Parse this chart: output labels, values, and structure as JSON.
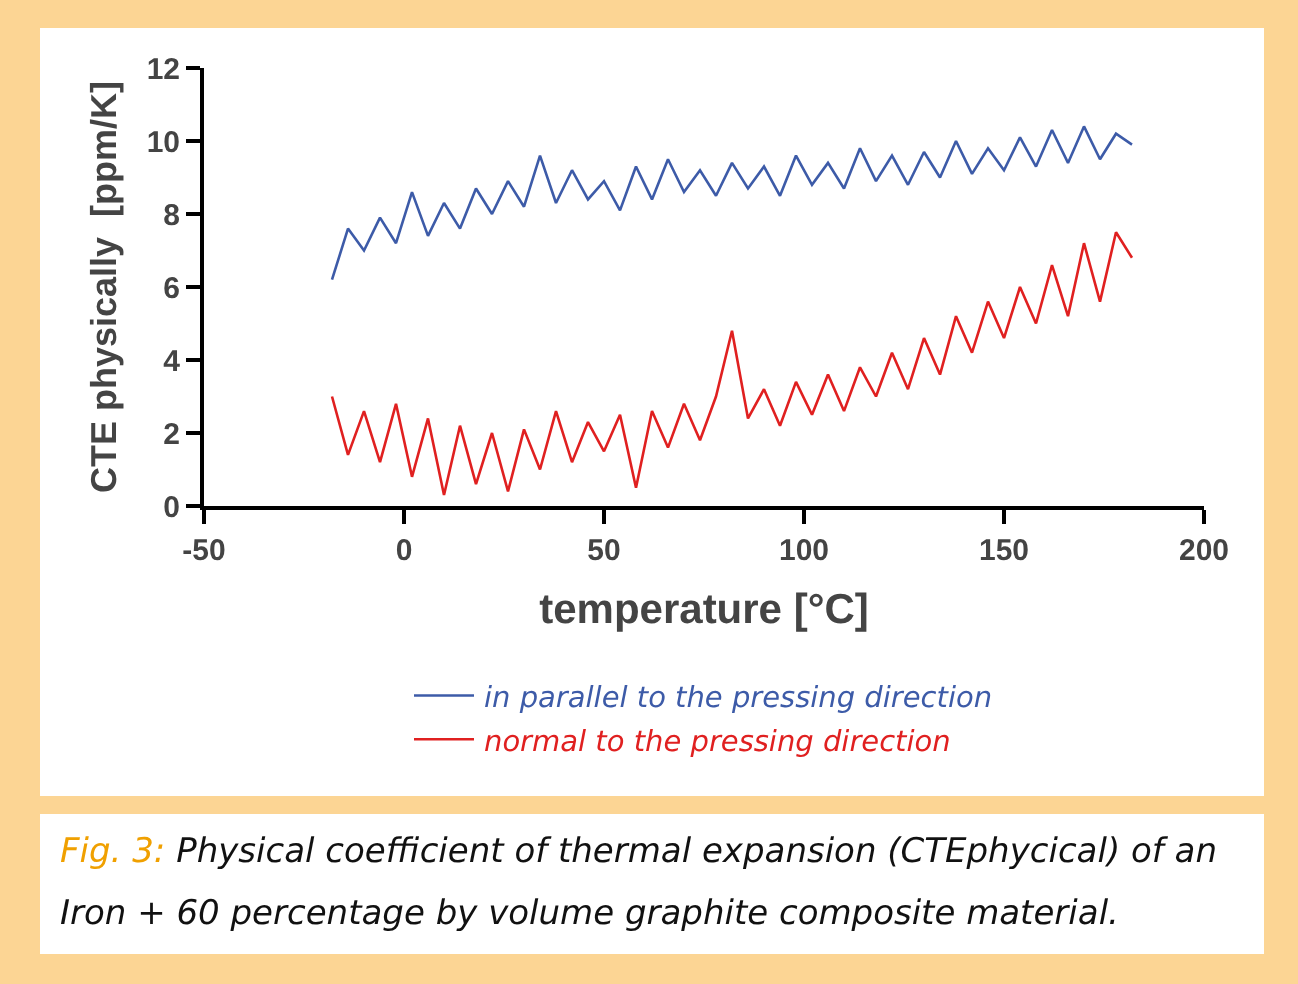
{
  "chart_data": {
    "type": "line",
    "xlabel": "temperature [°C]",
    "ylabel": "CTE physically  [ppm/K]",
    "annotations": [
      "Fig. 3:",
      "Physical coefficient of thermal expansion (CTEphycical) of an Iron + 60 percentage by volume graphite composite material."
    ],
    "x": [
      -18,
      -14,
      -10,
      -6,
      -2,
      2,
      6,
      10,
      14,
      18,
      22,
      26,
      30,
      34,
      38,
      42,
      46,
      50,
      54,
      58,
      62,
      66,
      70,
      74,
      78,
      82,
      86,
      90,
      94,
      98,
      102,
      106,
      110,
      114,
      118,
      122,
      126,
      130,
      134,
      138,
      142,
      146,
      150,
      154,
      158,
      162,
      166,
      170,
      174,
      178,
      182
    ],
    "series": [
      {
        "name": "in parallel to the pressing direction",
        "color": "#3d5ba8",
        "values": [
          6.2,
          7.6,
          7.0,
          7.9,
          7.2,
          8.6,
          7.4,
          8.3,
          7.6,
          8.7,
          8.0,
          8.9,
          8.2,
          9.6,
          8.3,
          9.2,
          8.4,
          8.9,
          8.1,
          9.3,
          8.4,
          9.5,
          8.6,
          9.2,
          8.5,
          9.4,
          8.7,
          9.3,
          8.5,
          9.6,
          8.8,
          9.4,
          8.7,
          9.8,
          8.9,
          9.6,
          8.8,
          9.7,
          9.0,
          10.0,
          9.1,
          9.8,
          9.2,
          10.1,
          9.3,
          10.3,
          9.4,
          10.4,
          9.5,
          10.2,
          9.9
        ]
      },
      {
        "name": "normal to the pressing direction",
        "color": "#e02020",
        "values": [
          3.0,
          1.4,
          2.6,
          1.2,
          2.8,
          0.8,
          2.4,
          0.3,
          2.2,
          0.6,
          2.0,
          0.4,
          2.1,
          1.0,
          2.6,
          1.2,
          2.3,
          1.5,
          2.5,
          0.5,
          2.6,
          1.6,
          2.8,
          1.8,
          3.0,
          4.8,
          2.4,
          3.2,
          2.2,
          3.4,
          2.5,
          3.6,
          2.6,
          3.8,
          3.0,
          4.2,
          3.2,
          4.6,
          3.6,
          5.2,
          4.2,
          5.6,
          4.6,
          6.0,
          5.0,
          6.6,
          5.2,
          7.2,
          5.6,
          7.5,
          6.8
        ]
      }
    ],
    "xlim": [
      -50,
      200
    ],
    "xticks": [
      -50,
      0,
      50,
      100,
      150,
      200
    ],
    "ylim": [
      0,
      12
    ],
    "yticks": [
      0,
      2,
      4,
      6,
      8,
      10,
      12
    ],
    "grid": false,
    "legend": "bottom",
    "marker": "none",
    "line_style": "solid"
  }
}
